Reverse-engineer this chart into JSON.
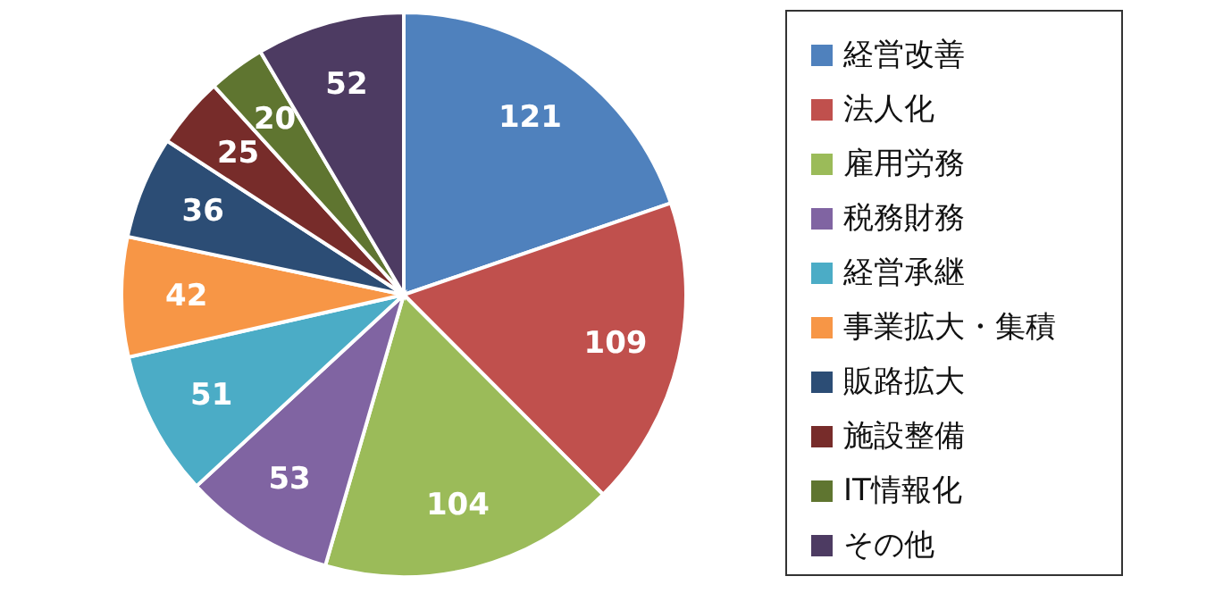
{
  "chart_data": {
    "type": "pie",
    "categories": [
      "経営改善",
      "法人化",
      "雇用労務",
      "税務財務",
      "経営承継",
      "事業拡大・集積",
      "販路拡大",
      "施設整備",
      "IT情報化",
      "その他"
    ],
    "values": [
      121,
      109,
      104,
      53,
      51,
      42,
      36,
      25,
      20,
      52
    ],
    "colors": [
      "#4f81bd",
      "#c0504d",
      "#9bbb59",
      "#8064a2",
      "#4bacc6",
      "#f79646",
      "#2c4d75",
      "#772c2a",
      "#5f7530",
      "#4d3b62"
    ],
    "data_labels": true,
    "legend": "right"
  }
}
